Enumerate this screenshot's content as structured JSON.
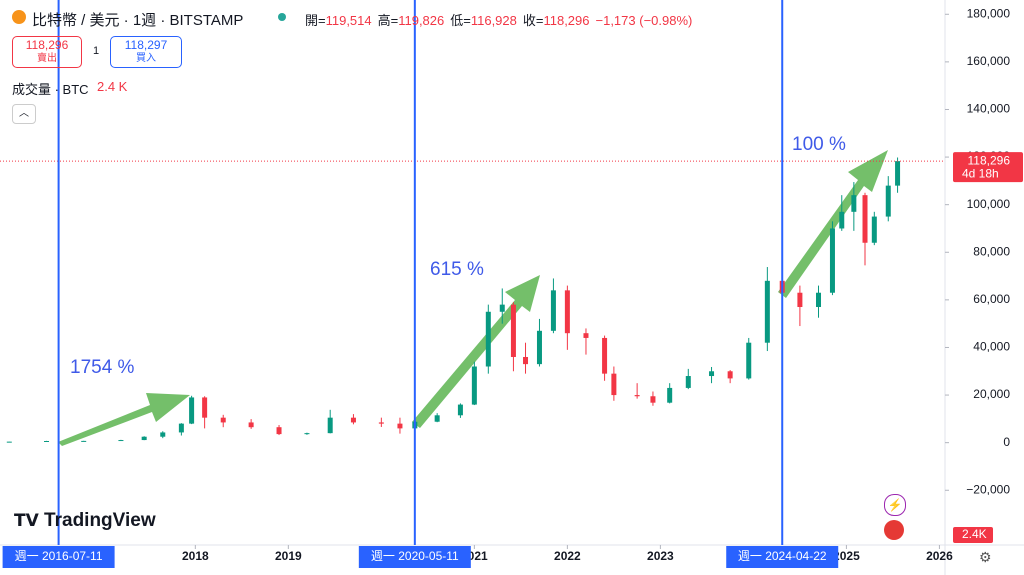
{
  "header": {
    "title": "比特幣 / 美元 · 1週 · BITSTAMP",
    "ohlc": [
      {
        "label": "開=",
        "value": "119,514"
      },
      {
        "label": "高=",
        "value": "119,826"
      },
      {
        "label": "低=",
        "value": "116,928"
      },
      {
        "label": "收=",
        "value": "118,296"
      }
    ],
    "change": "−1,173 (−0.98%)",
    "sell": {
      "price": "118,296",
      "label": "賣出"
    },
    "spread": "1",
    "buy": {
      "price": "118,297",
      "label": "買入"
    },
    "volume_label": "成交量 · BTC",
    "volume_value": "2.4 K"
  },
  "logo": "TradingView",
  "chart_data": {
    "type": "candlestick",
    "x": [
      2016.0,
      2016.4,
      2016.8,
      2017.2,
      2017.45,
      2017.65,
      2017.85,
      2017.96,
      2018.1,
      2018.3,
      2018.6,
      2018.9,
      2019.2,
      2019.45,
      2019.7,
      2020.0,
      2020.2,
      2020.36,
      2020.6,
      2020.85,
      2021.0,
      2021.15,
      2021.3,
      2021.42,
      2021.55,
      2021.7,
      2021.85,
      2022.0,
      2022.2,
      2022.4,
      2022.5,
      2022.75,
      2022.92,
      2023.1,
      2023.3,
      2023.55,
      2023.75,
      2023.95,
      2024.15,
      2024.31,
      2024.5,
      2024.7,
      2024.85,
      2024.95,
      2025.08,
      2025.2,
      2025.3,
      2025.45,
      2025.55
    ],
    "open": [
      400,
      430,
      700,
      740,
      1100,
      2500,
      4300,
      8000,
      19000,
      10500,
      8500,
      6500,
      3600,
      4000,
      10500,
      8500,
      8000,
      6000,
      8800,
      11500,
      16000,
      32000,
      55000,
      58000,
      36000,
      33000,
      47000,
      64000,
      46000,
      44000,
      29000,
      20000,
      19500,
      16800,
      23000,
      28000,
      30000,
      27000,
      42000,
      68000,
      63000,
      57000,
      63000,
      90000,
      97000,
      104000,
      84000,
      95000,
      108000
    ],
    "high": [
      460,
      760,
      780,
      1200,
      2700,
      4800,
      8200,
      19700,
      19500,
      11700,
      9900,
      7400,
      4200,
      13800,
      12000,
      10500,
      10500,
      10000,
      12400,
      16500,
      34000,
      58000,
      64800,
      59000,
      42000,
      52000,
      69000,
      66000,
      48000,
      45000,
      32000,
      25000,
      21500,
      25000,
      31000,
      31800,
      30500,
      44000,
      73800,
      72000,
      66000,
      66000,
      93000,
      104000,
      109500,
      105000,
      97000,
      112000,
      119826
    ],
    "low": [
      380,
      420,
      560,
      720,
      1050,
      1900,
      3000,
      7800,
      6000,
      6500,
      5800,
      3200,
      3300,
      3900,
      7700,
      6600,
      3800,
      5800,
      8600,
      10400,
      15800,
      29000,
      50000,
      30000,
      29000,
      32000,
      46000,
      39000,
      37000,
      26000,
      17600,
      18500,
      15500,
      16500,
      22500,
      25000,
      25000,
      26500,
      38500,
      56500,
      49000,
      52500,
      62000,
      89000,
      89000,
      74500,
      83000,
      93000,
      105000
    ],
    "close": [
      430,
      700,
      740,
      1100,
      2500,
      4300,
      8000,
      19000,
      10500,
      8500,
      6500,
      3600,
      4000,
      10500,
      8500,
      8000,
      6000,
      8800,
      11500,
      16000,
      32000,
      55000,
      58000,
      36000,
      33000,
      47000,
      64000,
      46000,
      44000,
      29000,
      20000,
      19500,
      16800,
      23000,
      28000,
      30000,
      27000,
      42000,
      68000,
      63000,
      57000,
      63000,
      90000,
      97000,
      104000,
      84000,
      95000,
      108000,
      118296
    ],
    "up_color": "#089981",
    "down_color": "#f23645",
    "xlim": [
      2015.9,
      2026.06
    ],
    "xticks": [
      2018,
      2019,
      2021,
      2022,
      2023,
      2025,
      2026
    ],
    "ylim": [
      -43000,
      186000
    ],
    "yticks": [
      {
        "value": -20000,
        "label": "−20,000"
      },
      0,
      {
        "value": 20000,
        "label": "20,000"
      },
      {
        "value": 40000,
        "label": "40,000"
      },
      {
        "value": 60000,
        "label": "60,000"
      },
      {
        "value": 80000,
        "label": "80,000"
      },
      {
        "value": 100000,
        "label": "100,000"
      },
      {
        "value": 120000,
        "label": "120,000"
      },
      {
        "value": 140000,
        "label": "140,000"
      },
      {
        "value": 160000,
        "label": "160,000"
      },
      {
        "value": 180000,
        "label": "180,000"
      }
    ],
    "last_price": {
      "value": 118296,
      "label": "118,296",
      "countdown": "4d 18h"
    },
    "volume_tag": "2.4K",
    "markers": [
      {
        "x": 2016.53,
        "label": "週一 2016-07-11"
      },
      {
        "x": 2020.36,
        "label": "週一 2020-05-11"
      },
      {
        "x": 2024.31,
        "label": "週一 2024-04-22"
      }
    ],
    "annotations": [
      "1754 %",
      "615 %",
      "100 %"
    ]
  }
}
